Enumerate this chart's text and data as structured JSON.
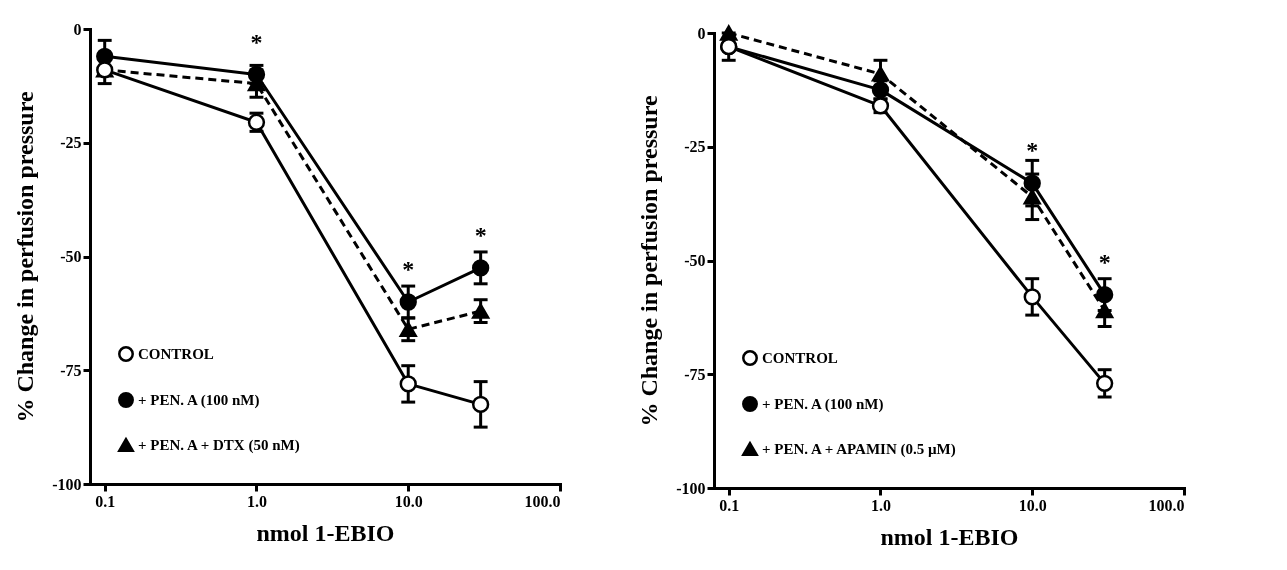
{
  "chart_data": [
    {
      "type": "line",
      "xlabel": "nmol  1-EBIO",
      "ylabel": "% Change in perfusion pressure",
      "log": "x",
      "x": [
        0.1,
        1,
        10,
        30
      ],
      "xlim": [
        0.08,
        100
      ],
      "xticks": [
        {
          "value": 0.1,
          "label": "0.1"
        },
        {
          "value": 1,
          "label": "1.0"
        },
        {
          "value": 10,
          "label": "10.0"
        },
        {
          "value": 100,
          "label": "100.0"
        }
      ],
      "ylim": [
        -100,
        0
      ],
      "yticks": [
        0,
        -25,
        -50,
        -75,
        -100
      ],
      "grid": false,
      "legend": "bottom left",
      "series": [
        {
          "name": "CONTROL",
          "color": "#ffffff",
          "marker": "circle",
          "line_style": "solid",
          "values": [
            -9,
            -20.5,
            -78,
            -82.5
          ],
          "errors": [
            3,
            2,
            4,
            5
          ]
        },
        {
          "name": "+ PEN. A (100 nM)",
          "color": "#000000",
          "marker": "circle",
          "line_style": "solid",
          "values": [
            -6,
            -10,
            -60,
            -52.5
          ],
          "errors": [
            3.5,
            2,
            3.5,
            3.5
          ]
        },
        {
          "name": "+ PEN. A + DTX (50 nM)",
          "color": "#000000",
          "marker": "triangle",
          "line_style": "dashed",
          "values": [
            -9,
            -12,
            -66,
            -62
          ],
          "errors": [
            null,
            3,
            2.5,
            2.5
          ]
        }
      ],
      "annotations": [
        {
          "text": "*",
          "x": 1,
          "y": -10
        },
        {
          "text": "*",
          "x": 10,
          "y": -60
        },
        {
          "text": "*",
          "x": 30,
          "y": -52.5
        }
      ]
    },
    {
      "type": "line",
      "xlabel": "nmol  1-EBIO",
      "ylabel": "% Change in perfusion pressure",
      "log": "x",
      "x": [
        0.1,
        1,
        10,
        30
      ],
      "xlim": [
        0.08,
        100
      ],
      "xticks": [
        {
          "value": 0.1,
          "label": "0.1"
        },
        {
          "value": 1,
          "label": "1.0"
        },
        {
          "value": 10,
          "label": "10.0"
        },
        {
          "value": 100,
          "label": "100.0"
        }
      ],
      "ylim": [
        -100,
        0
      ],
      "yticks": [
        0,
        -25,
        -50,
        -75,
        -100
      ],
      "grid": false,
      "legend": "bottom left",
      "series": [
        {
          "name": "CONTROL",
          "color": "#ffffff",
          "marker": "circle",
          "line_style": "solid",
          "values": [
            -3,
            -16,
            -58,
            -77
          ],
          "errors": [
            3,
            1.5,
            4,
            3
          ]
        },
        {
          "name": "+ PEN. A (100 nM)",
          "color": "#000000",
          "marker": "circle",
          "line_style": "solid",
          "values": [
            -3,
            -12.5,
            -33,
            -57.5
          ],
          "errors": [
            null,
            2,
            5,
            3.5
          ]
        },
        {
          "name": "+ PEN. A + APAMIN (0.5 µM)",
          "color": "#000000",
          "marker": "triangle",
          "line_style": "dashed",
          "values": [
            0,
            -9,
            -36,
            -61
          ],
          "errors": [
            null,
            3,
            5,
            3.5
          ]
        }
      ],
      "annotations": [
        {
          "text": "*",
          "x": 10,
          "y": -33
        },
        {
          "text": "*",
          "x": 30,
          "y": -57.5
        }
      ]
    }
  ]
}
